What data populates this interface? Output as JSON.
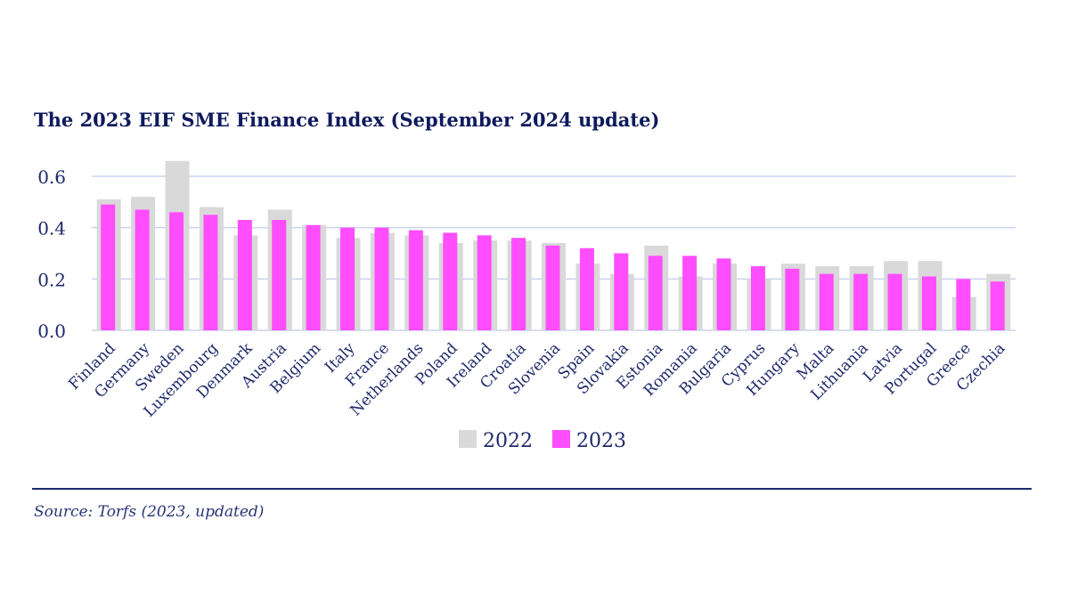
{
  "title": "The 2023 EIF SME Finance Index (September 2024 update)",
  "source": "Source: Torfs (2023, updated)",
  "colors": {
    "s2022": "#d9d9d9",
    "s2023": "#ff4dff",
    "grid": "#c9d3ef",
    "text": "#1f2a6b"
  },
  "chart_data": {
    "type": "bar",
    "title": "The 2023 EIF SME Finance Index (September 2024 update)",
    "xlabel": "",
    "ylabel": "",
    "ylim": [
      0,
      0.66
    ],
    "yticks": [
      0.0,
      0.2,
      0.4,
      0.6
    ],
    "ytick_labels": [
      "0.0",
      "0.2",
      "0.4",
      "0.6"
    ],
    "grid": true,
    "legend_position": "bottom",
    "categories": [
      "Finland",
      "Germany",
      "Sweden",
      "Luxembourg",
      "Denmark",
      "Austria",
      "Belgium",
      "Italy",
      "France",
      "Netherlands",
      "Poland",
      "Ireland",
      "Croatia",
      "Slovenia",
      "Spain",
      "Slovakia",
      "Estonia",
      "Romania",
      "Bulgaria",
      "Cyprus",
      "Hungary",
      "Malta",
      "Lithuania",
      "Latvia",
      "Portugal",
      "Greece",
      "Czechia"
    ],
    "series": [
      {
        "name": "2022",
        "values": [
          0.51,
          0.52,
          0.66,
          0.48,
          0.37,
          0.47,
          0.41,
          0.36,
          0.38,
          0.37,
          0.34,
          0.35,
          0.35,
          0.34,
          0.26,
          0.22,
          0.33,
          0.21,
          0.26,
          0.2,
          0.26,
          0.25,
          0.25,
          0.27,
          0.27,
          0.13,
          0.22
        ]
      },
      {
        "name": "2023",
        "values": [
          0.49,
          0.47,
          0.46,
          0.45,
          0.43,
          0.43,
          0.41,
          0.4,
          0.4,
          0.39,
          0.38,
          0.37,
          0.36,
          0.33,
          0.32,
          0.3,
          0.29,
          0.29,
          0.28,
          0.25,
          0.24,
          0.22,
          0.22,
          0.22,
          0.21,
          0.2,
          0.19
        ]
      }
    ]
  }
}
